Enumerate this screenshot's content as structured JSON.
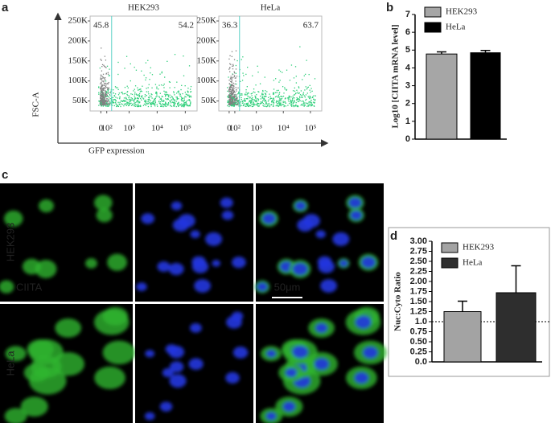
{
  "panel_labels": [
    "a",
    "b",
    "c",
    "d"
  ],
  "chart_data": [
    {
      "type": "flow",
      "title": "HEK293",
      "y_label": "FSC-A",
      "x_label": "GFP expression",
      "xlim": [
        -200,
        262144
      ],
      "ylim": [
        25000,
        262144
      ],
      "gate_x": 200,
      "gate_percentages": [
        45.8,
        54.2
      ],
      "xticks": [
        0,
        {
          "value": 100,
          "label": "10²"
        },
        {
          "value": 1000,
          "label": "10³"
        },
        {
          "value": 10000,
          "label": "10⁴"
        },
        {
          "value": 100000,
          "label": "10⁵"
        }
      ],
      "yticks": [
        {
          "value": 50000,
          "label": "50K"
        },
        {
          "value": 100000,
          "label": "100K"
        },
        {
          "value": 150000,
          "label": "150K"
        },
        {
          "value": 200000,
          "label": "200K"
        },
        {
          "value": 250000,
          "label": "250K"
        }
      ]
    },
    {
      "type": "flow",
      "title": "HeLa",
      "xlim": [
        -200,
        262144
      ],
      "ylim": [
        25000,
        262144
      ],
      "gate_x": 200,
      "gate_percentages": [
        36.3,
        63.7
      ],
      "xticks": [
        0,
        {
          "value": 100,
          "label": "10²"
        },
        {
          "value": 1000,
          "label": "10³"
        },
        {
          "value": 10000,
          "label": "10⁴"
        },
        {
          "value": 100000,
          "label": "10⁵"
        }
      ],
      "yticks": [
        {
          "value": 50000,
          "label": "50K"
        },
        {
          "value": 100000,
          "label": "100K"
        },
        {
          "value": 150000,
          "label": "150K"
        },
        {
          "value": 200000,
          "label": "200K"
        },
        {
          "value": 250000,
          "label": "250K"
        }
      ]
    },
    {
      "type": "bar",
      "y_label": "Log10 [CIITA mRNA level]",
      "ylim": [
        0,
        7
      ],
      "yticks": [
        0,
        1,
        2,
        3,
        4,
        5,
        6,
        7
      ],
      "series": [
        {
          "name": "HEK293",
          "color": "#a6a6a6",
          "values": [
            4.78
          ],
          "errors": [
            0.12
          ]
        },
        {
          "name": "HeLa",
          "color": "#000000",
          "values": [
            4.85
          ],
          "errors": [
            0.13
          ]
        }
      ]
    },
    {
      "type": "bar",
      "y_label": "Nuc:Cyto Ratio",
      "ylim": [
        0,
        3
      ],
      "reference_line": 1,
      "yticks": [
        {
          "value": 0,
          "label": "0.0"
        },
        0.25,
        {
          "value": 0.5,
          "label": "0.50"
        },
        0.75,
        {
          "value": 1,
          "label": "1.0"
        },
        1.25,
        {
          "value": 1.5,
          "label": "1.50"
        },
        1.75,
        {
          "value": 2,
          "label": "2.00"
        },
        2.25,
        {
          "value": 2.5,
          "label": "2.50"
        },
        2.75,
        {
          "value": 3,
          "label": "3.00"
        }
      ],
      "series": [
        {
          "name": "HEK293",
          "color": "#a3a3a3",
          "values": [
            1.25
          ],
          "errors": [
            0.26
          ]
        },
        {
          "name": "HeLa",
          "color": "#2e2e2e",
          "values": [
            1.72
          ],
          "errors": [
            0.67
          ]
        }
      ]
    }
  ],
  "microscopy": {
    "row_labels": [
      "HEK293",
      "HeLa"
    ],
    "stain_label": "CIITA",
    "scale_bar": "50μm"
  }
}
